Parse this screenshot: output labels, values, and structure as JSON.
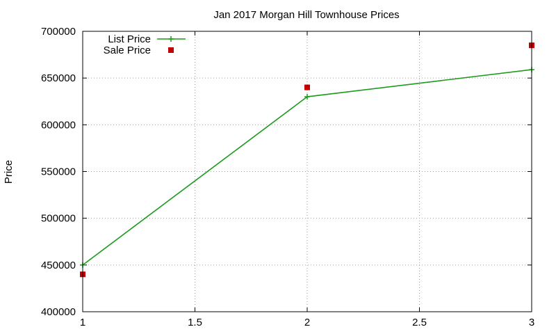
{
  "chart_data": {
    "type": "line",
    "title": "Jan 2017 Morgan Hill Townhouse Prices",
    "xlabel": "",
    "ylabel": "Price",
    "xlim": [
      1,
      3
    ],
    "ylim": [
      400000,
      700000
    ],
    "xticks": [
      1,
      1.5,
      2,
      2.5,
      3
    ],
    "xtick_labels": [
      "1",
      "1.5",
      "2",
      "2.5",
      "3"
    ],
    "yticks": [
      400000,
      450000,
      500000,
      550000,
      600000,
      650000,
      700000
    ],
    "ytick_labels": [
      "400000",
      "450000",
      "500000",
      "550000",
      "600000",
      "650000",
      "700000"
    ],
    "grid": true,
    "legend_position": "top-left",
    "series": [
      {
        "name": "List Price",
        "style": "linespoints",
        "marker": "plus",
        "color": "#1a9a1a",
        "x": [
          1,
          2,
          3
        ],
        "y": [
          450000,
          630000,
          659000
        ]
      },
      {
        "name": "Sale Price",
        "style": "points",
        "marker": "square",
        "color": "#c00000",
        "x": [
          1,
          2,
          3
        ],
        "y": [
          440000,
          640000,
          685000
        ]
      }
    ]
  }
}
